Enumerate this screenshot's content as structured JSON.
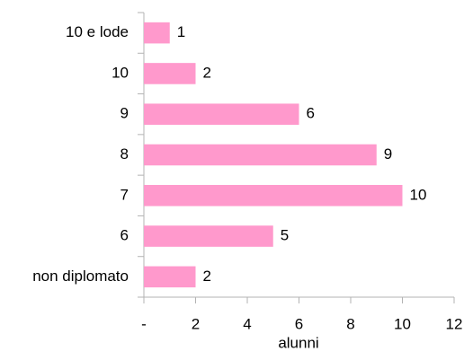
{
  "chart_data": {
    "type": "hbar",
    "categories": [
      "10 e lode",
      "10",
      "9",
      "8",
      "7",
      "6",
      "non diplomato"
    ],
    "values": [
      1,
      2,
      6,
      9,
      10,
      5,
      2
    ],
    "color": "#ff99cc",
    "xlabel": "alunni",
    "xlim": [
      0,
      12
    ],
    "xticks": [
      {
        "value": 0,
        "label": "-"
      },
      2,
      4,
      6,
      8,
      10,
      12
    ],
    "grid": false
  }
}
